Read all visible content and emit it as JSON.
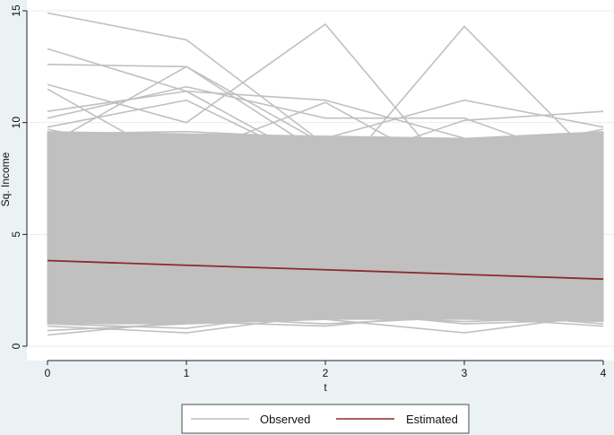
{
  "chart_data": {
    "type": "line",
    "x": [
      0,
      1,
      2,
      3,
      4
    ],
    "xlabel": "t",
    "ylabel": "Sq. Income",
    "xlim": [
      0,
      4
    ],
    "ylim": [
      0,
      15
    ],
    "x_ticks": [
      "0",
      "1",
      "2",
      "3",
      "4"
    ],
    "y_ticks": [
      "0",
      "5",
      "10",
      "15"
    ],
    "grid": "horizontal",
    "legend_position": "bottom",
    "series": [
      {
        "name": "Observed",
        "color": "#c0c0c0",
        "band_upper": [
          9.6,
          9.5,
          9.4,
          9.3,
          9.6
        ],
        "band_lower": [
          1.0,
          1.0,
          1.2,
          1.2,
          1.1
        ],
        "lines": [
          [
            14.9,
            13.7,
            9.0,
            8.0,
            7.0
          ],
          [
            13.3,
            11.4,
            8.0,
            7.5,
            8.0
          ],
          [
            12.6,
            12.5,
            9.0,
            8.0,
            7.0
          ],
          [
            11.7,
            10.0,
            14.4,
            7.0,
            8.0
          ],
          [
            11.5,
            8.0,
            7.0,
            14.3,
            8.0
          ],
          [
            10.5,
            11.4,
            11.0,
            9.3,
            8.0
          ],
          [
            10.2,
            11.6,
            10.2,
            10.2,
            8.0
          ],
          [
            9.8,
            11.0,
            8.0,
            10.1,
            10.5
          ],
          [
            9.7,
            8.5,
            10.9,
            7.5,
            9.0
          ],
          [
            9.5,
            9.6,
            9.3,
            11.0,
            9.8
          ],
          [
            9.0,
            12.5,
            8.5,
            8.8,
            9.5
          ],
          [
            8.8,
            8.0,
            9.0,
            8.5,
            9.7
          ],
          [
            0.7,
            1.0,
            1.2,
            0.6,
            1.4
          ],
          [
            0.5,
            1.1,
            0.9,
            1.5,
            1.0
          ],
          [
            0.9,
            0.6,
            1.4,
            1.1,
            1.3
          ],
          [
            1.0,
            0.8,
            1.6,
            1.0,
            1.2
          ],
          [
            1.2,
            1.3,
            1.0,
            1.3,
            0.9
          ]
        ]
      },
      {
        "name": "Estimated",
        "color": "#8c2a2e",
        "values": [
          3.83,
          3.62,
          3.42,
          3.21,
          3.0
        ]
      }
    ]
  }
}
